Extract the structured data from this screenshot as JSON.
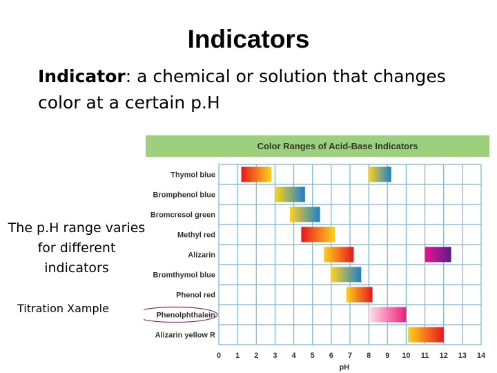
{
  "slide": {
    "title": "Indicators",
    "definition_term": "Indicator",
    "definition_rest": ": a chemical or solution that changes color at a certain p.H",
    "side_note": "The p.H range varies for different indicators",
    "link_text": "Titration Xample"
  },
  "chart_data": {
    "type": "range-bar",
    "title": "Color Ranges of Acid-Base Indicators",
    "xlabel": "pH",
    "xlim": [
      0,
      14
    ],
    "xticks": [
      0,
      1,
      2,
      3,
      4,
      5,
      6,
      7,
      8,
      9,
      10,
      11,
      12,
      13,
      14
    ],
    "grid": true,
    "header_color": "#9dd07c",
    "grid_color": "#6fb6de",
    "highlight_color": "#8a2a6d",
    "highlighted_indicator": "Phenolphthalein",
    "indicators": [
      {
        "name": "Thymol blue",
        "ranges": [
          {
            "start": 1.2,
            "end": 2.8,
            "from": "#e8161c",
            "to": "#ffd21a"
          },
          {
            "start": 8.0,
            "end": 9.2,
            "from": "#ffd21a",
            "to": "#1a7fd0"
          }
        ]
      },
      {
        "name": "Bromphenol blue",
        "ranges": [
          {
            "start": 3.0,
            "end": 4.6,
            "from": "#ffd21a",
            "to": "#1a7fd0"
          }
        ]
      },
      {
        "name": "Bromcresol green",
        "ranges": [
          {
            "start": 3.8,
            "end": 5.4,
            "from": "#ffd21a",
            "to": "#1a7fd0"
          }
        ]
      },
      {
        "name": "Methyl red",
        "ranges": [
          {
            "start": 4.4,
            "end": 6.2,
            "from": "#e8161c",
            "to": "#ffd21a"
          }
        ]
      },
      {
        "name": "Alizarin",
        "ranges": [
          {
            "start": 5.6,
            "end": 7.2,
            "from": "#ffd21a",
            "to": "#e8161c"
          },
          {
            "start": 11.0,
            "end": 12.4,
            "from": "#e8168a",
            "to": "#5a1a8c"
          }
        ]
      },
      {
        "name": "Bromthymol blue",
        "ranges": [
          {
            "start": 6.0,
            "end": 7.6,
            "from": "#ffd21a",
            "to": "#1a7fd0"
          }
        ]
      },
      {
        "name": "Phenol red",
        "ranges": [
          {
            "start": 6.8,
            "end": 8.2,
            "from": "#ffd21a",
            "to": "#e8161c"
          }
        ]
      },
      {
        "name": "Phenolphthalein",
        "ranges": [
          {
            "start": 8.0,
            "end": 10.0,
            "from": "#fde3ea",
            "to": "#ee1e7c"
          }
        ]
      },
      {
        "name": "Alizarin yellow R",
        "ranges": [
          {
            "start": 10.1,
            "end": 12.0,
            "from": "#ffd21a",
            "to": "#e8161c"
          }
        ]
      }
    ]
  }
}
